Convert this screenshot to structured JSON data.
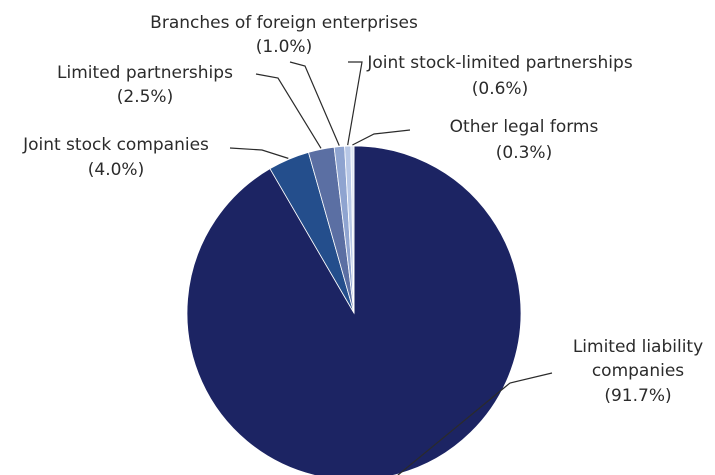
{
  "chart_data": {
    "type": "pie",
    "title": "",
    "slices": [
      {
        "name": "Limited liability companies",
        "label_lines": [
          "Limited liability",
          "companies"
        ],
        "value": 91.7,
        "pct_label": "(91.7%)",
        "color": "#1c2463"
      },
      {
        "name": "Joint stock companies",
        "label_lines": [
          "Joint stock companies"
        ],
        "value": 4.0,
        "pct_label": "(4.0%)",
        "color": "#244e8c"
      },
      {
        "name": "Limited partnerships",
        "label_lines": [
          "Limited partnerships"
        ],
        "value": 2.5,
        "pct_label": "(2.5%)",
        "color": "#5b6fa3"
      },
      {
        "name": "Branches of foreign enterprises",
        "label_lines": [
          "Branches of foreign enterprises"
        ],
        "value": 1.0,
        "pct_label": "(1.0%)",
        "color": "#8fa4d0"
      },
      {
        "name": "Joint stock-limited partnerships",
        "label_lines": [
          "Joint stock-limited partnerships"
        ],
        "value": 0.6,
        "pct_label": "(0.6%)",
        "color": "#b7c7e6"
      },
      {
        "name": "Other legal forms",
        "label_lines": [
          "Other legal forms"
        ],
        "value": 0.3,
        "pct_label": "(0.3%)",
        "color": "#dfe7f5"
      }
    ],
    "legend": "none",
    "slice_order": "clockwise-from-top-starting-with-largest"
  }
}
